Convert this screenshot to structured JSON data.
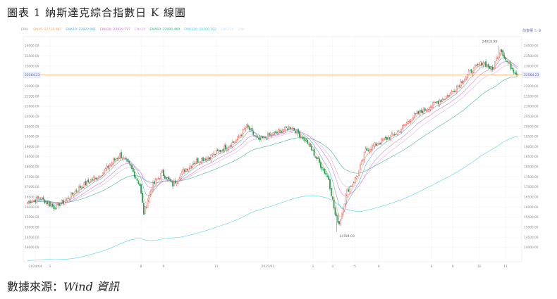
{
  "title": "圖表 1 納斯達克綜合指數日 K 線圖",
  "source_label": "數據來源：",
  "source_name": "Wind 資訊",
  "legend": {
    "ema": "EMA",
    "items": [
      {
        "name": "EMA5",
        "value": "22719.087",
        "color": "#f5a25d"
      },
      {
        "name": "EMA10",
        "value": "22822.061",
        "color": "#4da3e0"
      },
      {
        "name": "EMA20",
        "value": "22829.717",
        "color": "#d16fd1"
      },
      {
        "name": "EMA30",
        "value": "",
        "color": "#e6a7e6"
      },
      {
        "name": "EMA60",
        "value": "22095.469",
        "color": "#2db38a"
      },
      {
        "name": "EMA120",
        "value": "20308.192",
        "color": "#3fd0e0"
      },
      {
        "name": "EMA250",
        "value": "",
        "color": "#c8e3f5"
      },
      {
        "name": "EMA",
        "value": "",
        "color": "#dddddd"
      }
    ]
  },
  "toolbar": {
    "label": "前復權"
  },
  "price_tag": "22564.23",
  "chart_data": {
    "type": "candlestick",
    "title": "",
    "ylim": [
      13500,
      24250
    ],
    "yticks": [
      14000,
      14500,
      15000,
      15500,
      16000,
      16500,
      17000,
      17500,
      18000,
      18500,
      19000,
      19500,
      20000,
      20500,
      21000,
      21500,
      22000,
      22500,
      23000,
      23500,
      24000
    ],
    "xticks": [
      {
        "label": "2024/04",
        "i": 6
      },
      {
        "label": "5",
        "i": 17
      },
      {
        "label": "8",
        "i": 86
      },
      {
        "label": "9",
        "i": 103
      },
      {
        "label": "11",
        "i": 143
      },
      {
        "label": "2025/01",
        "i": 182
      },
      {
        "label": "3",
        "i": 216
      },
      {
        "label": "4",
        "i": 231
      },
      {
        "label": "5",
        "i": 248
      },
      {
        "label": "6",
        "i": 266
      },
      {
        "label": "8",
        "i": 306
      },
      {
        "label": "9",
        "i": 322
      },
      {
        "label": "10",
        "i": 342
      },
      {
        "label": "11",
        "i": 362
      }
    ],
    "annotations": [
      {
        "text": "24019.99",
        "i": 357,
        "value": 24019.99,
        "pos": "above"
      },
      {
        "text": "14784.03",
        "i": 234,
        "value": 14784.03,
        "pos": "below"
      }
    ],
    "last_price": 22564.23,
    "n": 372,
    "anchors": [
      [
        0,
        16250
      ],
      [
        10,
        16450
      ],
      [
        20,
        16000
      ],
      [
        28,
        16300
      ],
      [
        40,
        17000
      ],
      [
        55,
        17600
      ],
      [
        70,
        18600
      ],
      [
        78,
        18000
      ],
      [
        85,
        17100
      ],
      [
        88,
        15700
      ],
      [
        94,
        17000
      ],
      [
        102,
        17700
      ],
      [
        110,
        17100
      ],
      [
        118,
        17800
      ],
      [
        128,
        18300
      ],
      [
        138,
        18500
      ],
      [
        148,
        18900
      ],
      [
        158,
        19300
      ],
      [
        166,
        20000
      ],
      [
        175,
        19300
      ],
      [
        185,
        19600
      ],
      [
        200,
        20000
      ],
      [
        212,
        19200
      ],
      [
        220,
        18300
      ],
      [
        228,
        17400
      ],
      [
        233,
        15600
      ],
      [
        236,
        15200
      ],
      [
        242,
        16800
      ],
      [
        250,
        17600
      ],
      [
        256,
        18800
      ],
      [
        266,
        19200
      ],
      [
        280,
        19700
      ],
      [
        292,
        20500
      ],
      [
        305,
        21000
      ],
      [
        320,
        21600
      ],
      [
        335,
        22700
      ],
      [
        345,
        23200
      ],
      [
        352,
        22800
      ],
      [
        358,
        23900
      ],
      [
        362,
        23300
      ],
      [
        368,
        22800
      ],
      [
        371,
        22564
      ]
    ]
  }
}
